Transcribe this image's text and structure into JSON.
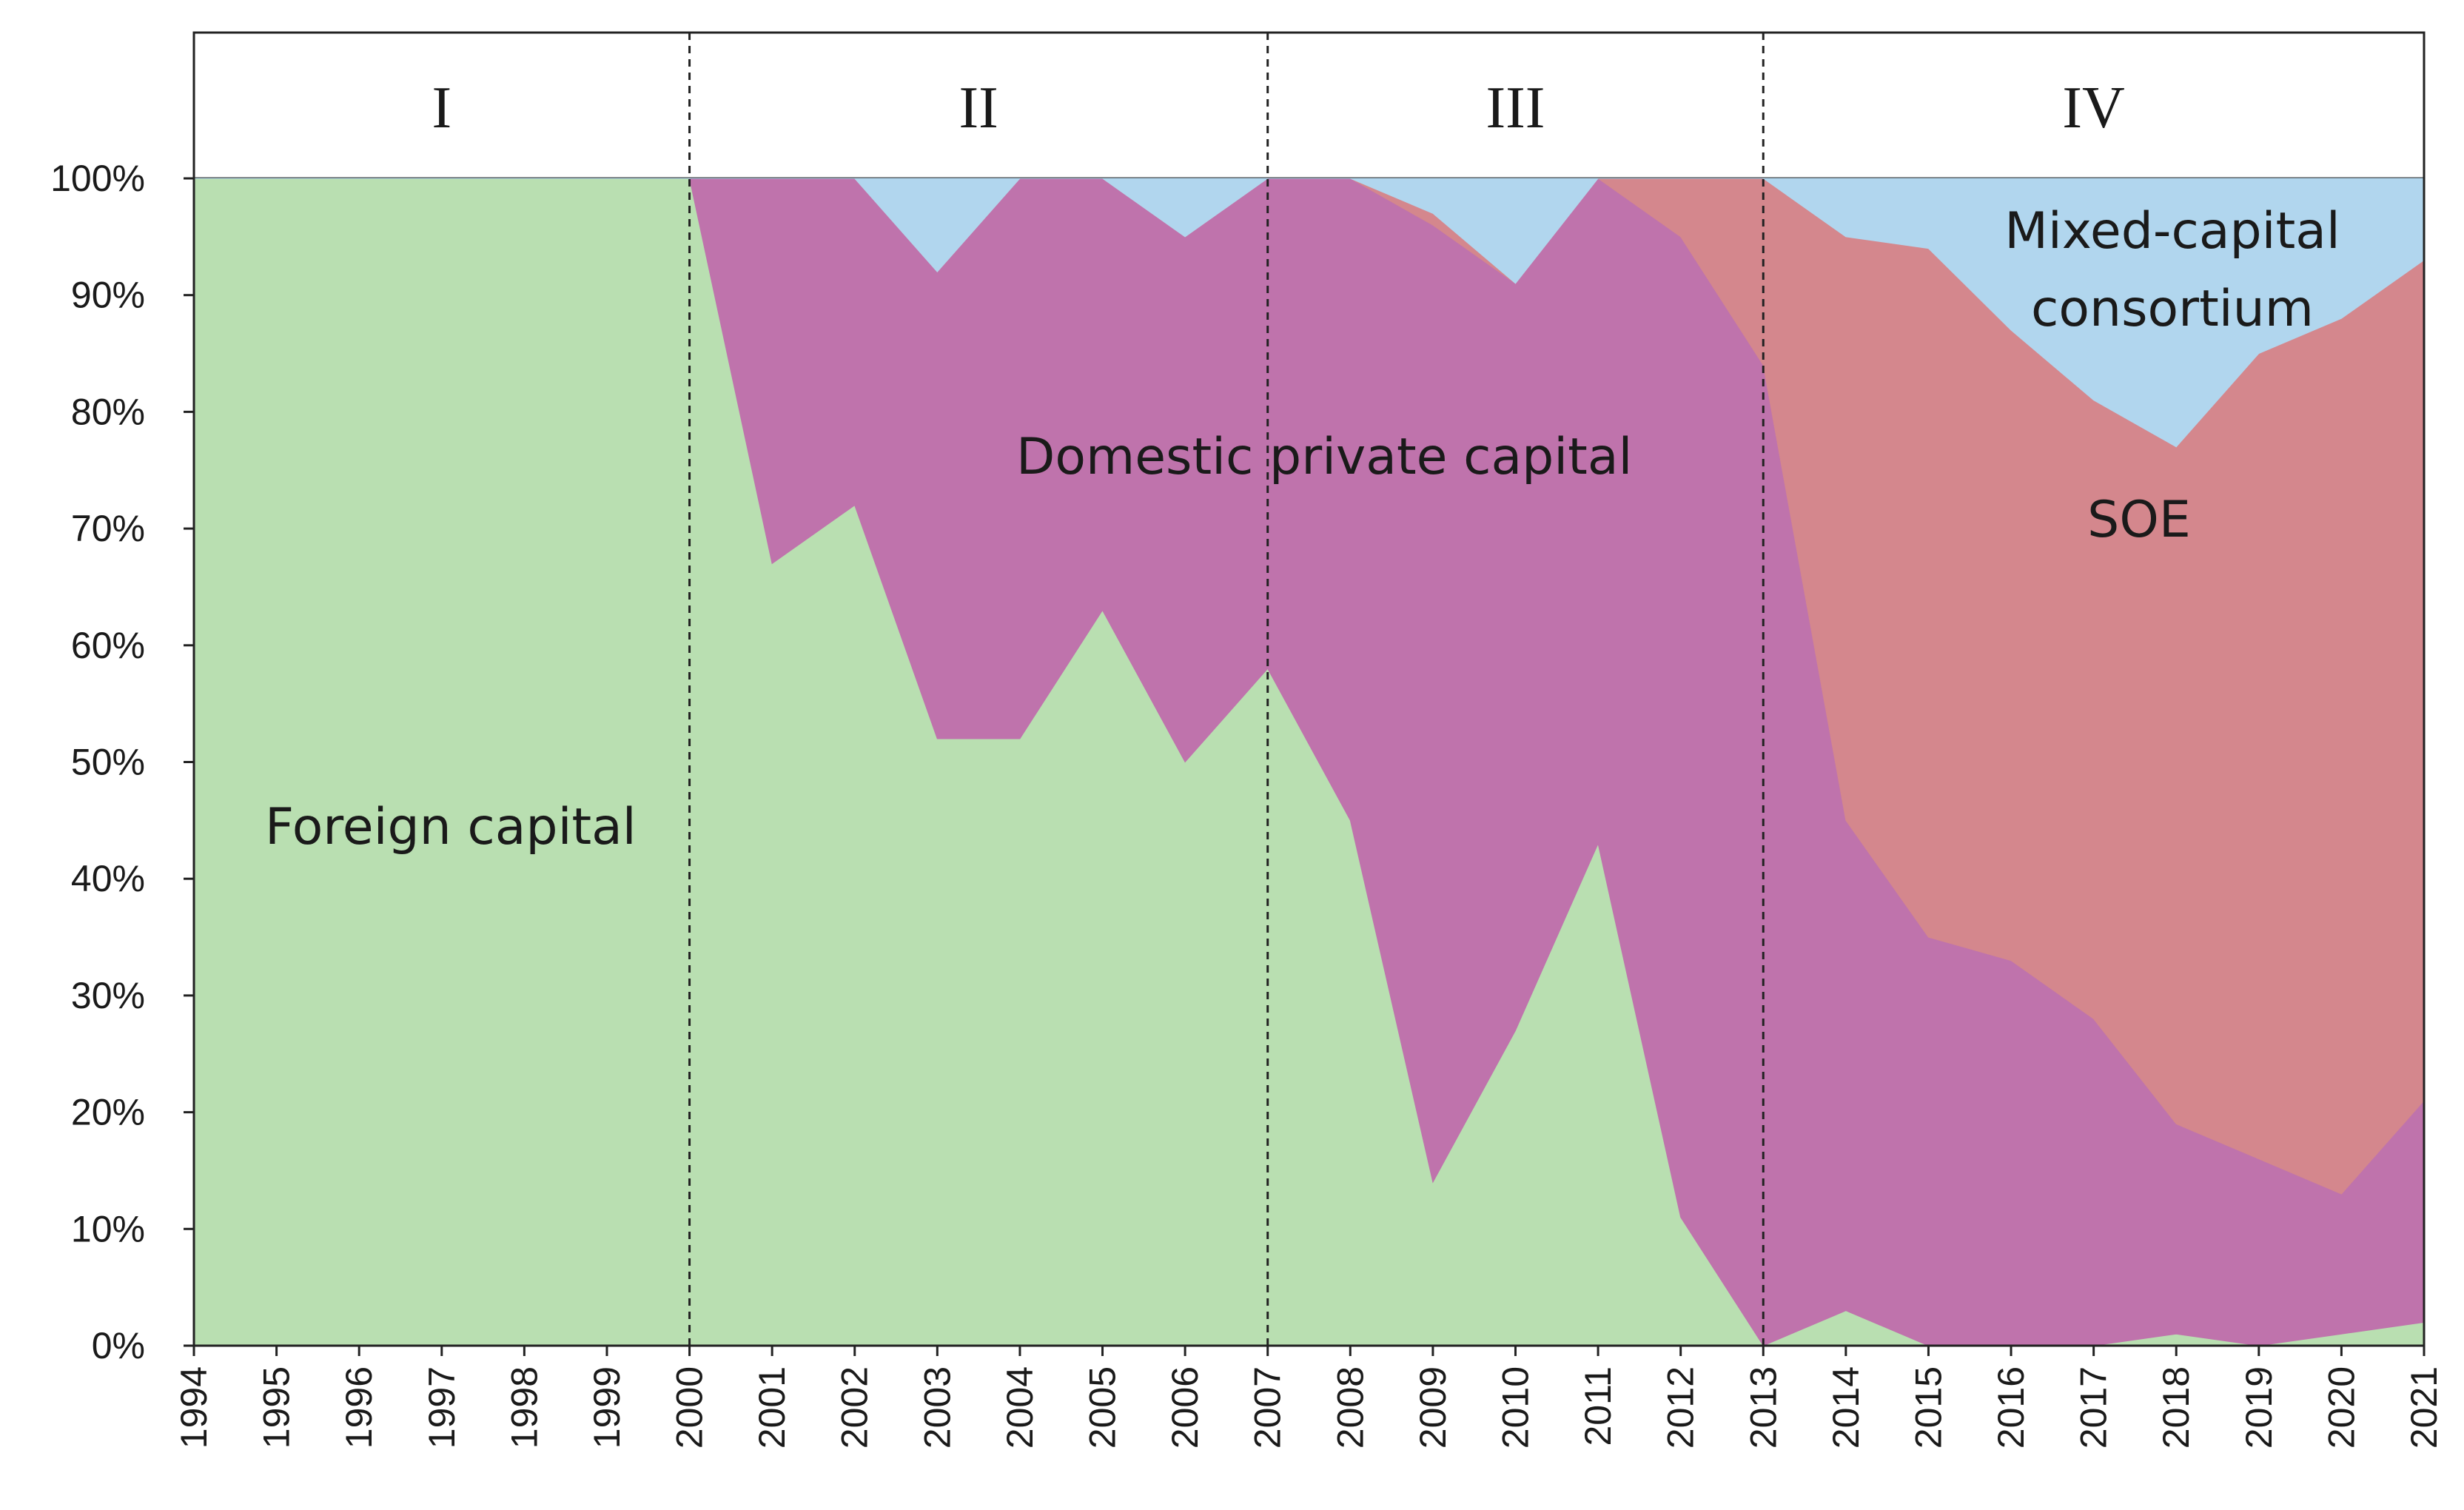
{
  "chart_data": {
    "type": "area",
    "stacked": true,
    "normalized": true,
    "x": [
      1994,
      1995,
      1996,
      1997,
      1998,
      1999,
      2000,
      2001,
      2002,
      2003,
      2004,
      2005,
      2006,
      2007,
      2008,
      2009,
      2010,
      2011,
      2012,
      2013,
      2014,
      2015,
      2016,
      2017,
      2018,
      2019,
      2020,
      2021
    ],
    "x_tick_labels": [
      "1994",
      "1995",
      "1996",
      "1997",
      "1998",
      "1999",
      "2000",
      "2001",
      "2002",
      "2003",
      "2004",
      "2005",
      "2006",
      "2007",
      "2008",
      "2009",
      "2010",
      "2011",
      "2012",
      "2013",
      "2014",
      "2015",
      "2016",
      "2017",
      "2018",
      "2019",
      "2020",
      "2021"
    ],
    "ylim": [
      0,
      100
    ],
    "y_tick_labels": [
      "0%",
      "10%",
      "20%",
      "30%",
      "40%",
      "50%",
      "60%",
      "70%",
      "80%",
      "90%",
      "100%"
    ],
    "series": [
      {
        "name": "Foreign capital",
        "color": "#b9dfb1",
        "values": [
          100,
          100,
          100,
          100,
          100,
          100,
          100,
          67,
          72,
          52,
          52,
          63,
          50,
          58,
          45,
          14,
          27,
          43,
          11,
          0,
          3,
          0,
          0,
          0,
          1,
          0,
          1,
          2
        ]
      },
      {
        "name": "Domestic private capital",
        "color": "#bf73ac",
        "values": [
          0,
          0,
          0,
          0,
          0,
          0,
          0,
          33,
          28,
          40,
          48,
          37,
          45,
          42,
          55,
          82,
          64,
          57,
          84,
          84,
          42,
          35,
          33,
          28,
          18,
          16,
          12,
          19
        ]
      },
      {
        "name": "SOE",
        "color": "#d4878d",
        "values": [
          0,
          0,
          0,
          0,
          0,
          0,
          0,
          0,
          0,
          0,
          0,
          0,
          0,
          0,
          0,
          1,
          0,
          0,
          5,
          16,
          50,
          59,
          54,
          53,
          58,
          69,
          75,
          72
        ]
      },
      {
        "name": "Mixed-capital consortium",
        "color": "#b1d6ee",
        "values": [
          0,
          0,
          0,
          0,
          0,
          0,
          0,
          0,
          0,
          8,
          0,
          0,
          5,
          0,
          0,
          3,
          9,
          0,
          0,
          0,
          5,
          6,
          13,
          19,
          23,
          15,
          12,
          7
        ]
      }
    ],
    "labels": {
      "foreign": "Foreign capital",
      "domestic": "Domestic private capital",
      "soe": "SOE",
      "mixed_line1": "Mixed-capital",
      "mixed_line2": "consortium"
    },
    "phases": [
      {
        "label": "I",
        "from": 1994,
        "to": 2000
      },
      {
        "label": "II",
        "from": 2000,
        "to": 2007
      },
      {
        "label": "III",
        "from": 2007,
        "to": 2013
      },
      {
        "label": "IV",
        "from": 2013,
        "to": 2021
      }
    ],
    "phase_dividers": [
      2000,
      2007,
      2013
    ]
  }
}
